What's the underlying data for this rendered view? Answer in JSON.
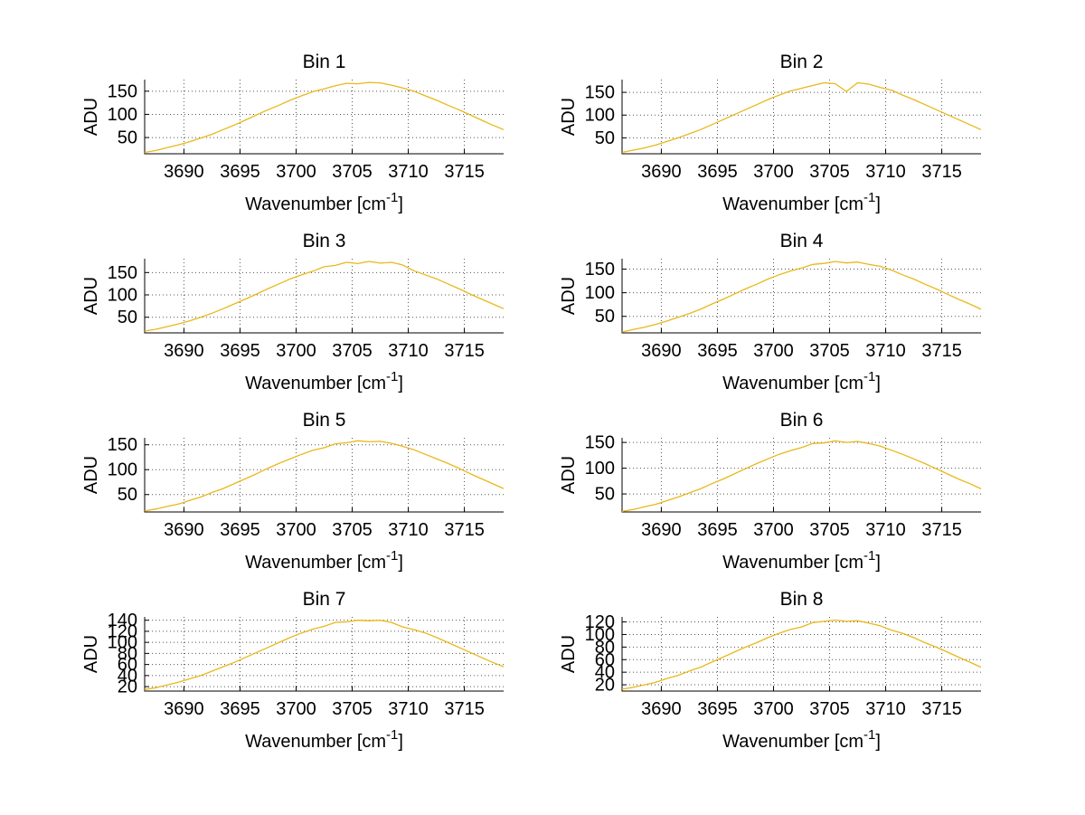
{
  "figure": {
    "background": "#ffffff",
    "line_color": "#e9b81a",
    "grid_color": "#555555",
    "axis_color": "#000000"
  },
  "shared": {
    "xlabel": "Wavenumber [cm⁻¹]",
    "xlabel_prefix": "Wavenumber [cm",
    "xlabel_sup": "-1",
    "xlabel_suffix": "]",
    "ylabel": "ADU",
    "xlim": [
      3686.5,
      3718.5
    ],
    "xticks": [
      3690,
      3695,
      3700,
      3705,
      3710,
      3715
    ],
    "x": [
      3686.5,
      3687.5,
      3688.5,
      3689.5,
      3690.5,
      3691.5,
      3692.5,
      3693.5,
      3694.5,
      3695.5,
      3696.5,
      3697.5,
      3698.5,
      3699.5,
      3700.5,
      3701.5,
      3702.5,
      3703.5,
      3704.5,
      3705.5,
      3706.5,
      3707.5,
      3708.5,
      3709.5,
      3710.5,
      3711.5,
      3712.5,
      3713.5,
      3714.5,
      3715.5,
      3716.5,
      3717.5,
      3718.5
    ]
  },
  "chart_data": [
    {
      "type": "line",
      "title": "Bin 1",
      "xlabel": "Wavenumber [cm⁻¹]",
      "ylabel": "ADU",
      "yticks": [
        50,
        100,
        150
      ],
      "ylim": [
        15,
        175
      ],
      "values": [
        18,
        22,
        28,
        34,
        41,
        49,
        57,
        67,
        77,
        88,
        99,
        110,
        120,
        131,
        140,
        149,
        155,
        162,
        167,
        166,
        169,
        168,
        163,
        157,
        150,
        140,
        131,
        120,
        110,
        99,
        88,
        77,
        67
      ]
    },
    {
      "type": "line",
      "title": "Bin 2",
      "xlabel": "Wavenumber [cm⁻¹]",
      "ylabel": "ADU",
      "yticks": [
        50,
        100,
        150
      ],
      "ylim": [
        15,
        178
      ],
      "values": [
        18,
        23,
        28,
        34,
        42,
        50,
        59,
        68,
        79,
        90,
        101,
        112,
        123,
        134,
        144,
        153,
        159,
        165,
        171,
        169,
        152,
        171,
        168,
        161,
        155,
        144,
        134,
        123,
        112,
        101,
        90,
        79,
        68
      ]
    },
    {
      "type": "line",
      "title": "Bin 3",
      "xlabel": "Wavenumber [cm⁻¹]",
      "ylabel": "ADU",
      "yticks": [
        50,
        100,
        150
      ],
      "ylim": [
        15,
        181
      ],
      "values": [
        19,
        23,
        29,
        35,
        42,
        50,
        59,
        69,
        80,
        91,
        102,
        114,
        125,
        136,
        145,
        153,
        163,
        166,
        173,
        170,
        175,
        171,
        173,
        167,
        154,
        145,
        136,
        125,
        114,
        102,
        91,
        80,
        69
      ]
    },
    {
      "type": "line",
      "title": "Bin 4",
      "xlabel": "Wavenumber [cm⁻¹]",
      "ylabel": "ADU",
      "yticks": [
        50,
        100,
        150
      ],
      "ylim": [
        15,
        172
      ],
      "values": [
        17,
        22,
        27,
        33,
        40,
        48,
        56,
        65,
        76,
        86,
        97,
        108,
        118,
        129,
        138,
        146,
        152,
        160,
        162,
        166,
        163,
        165,
        160,
        156,
        148,
        138,
        129,
        118,
        108,
        97,
        86,
        76,
        65
      ]
    },
    {
      "type": "line",
      "title": "Bin 5",
      "xlabel": "Wavenumber [cm⁻¹]",
      "ylabel": "ADU",
      "yticks": [
        50,
        100,
        150
      ],
      "ylim": [
        15,
        164
      ],
      "values": [
        17,
        21,
        26,
        31,
        38,
        45,
        54,
        62,
        72,
        82,
        92,
        103,
        113,
        122,
        131,
        139,
        144,
        152,
        154,
        158,
        156,
        157,
        153,
        147,
        140,
        131,
        122,
        113,
        103,
        92,
        82,
        72,
        62
      ]
    },
    {
      "type": "line",
      "title": "Bin 6",
      "xlabel": "Wavenumber [cm⁻¹]",
      "ylabel": "ADU",
      "yticks": [
        50,
        100,
        150
      ],
      "ylim": [
        15,
        159
      ],
      "values": [
        16,
        20,
        25,
        30,
        37,
        44,
        52,
        60,
        70,
        79,
        89,
        99,
        109,
        118,
        127,
        134,
        140,
        148,
        149,
        153,
        150,
        152,
        148,
        143,
        135,
        127,
        118,
        109,
        99,
        89,
        79,
        70,
        60
      ]
    },
    {
      "type": "line",
      "title": "Bin 7",
      "xlabel": "Wavenumber [cm⁻¹]",
      "ylabel": "ADU",
      "yticks": [
        20,
        40,
        60,
        80,
        100,
        120,
        140
      ],
      "ylim": [
        12,
        146
      ],
      "values": [
        15,
        18,
        23,
        28,
        34,
        40,
        48,
        56,
        64,
        73,
        82,
        91,
        100,
        109,
        117,
        124,
        129,
        136,
        137,
        140,
        139,
        140,
        136,
        128,
        123,
        117,
        109,
        100,
        91,
        82,
        73,
        64,
        56
      ]
    },
    {
      "type": "line",
      "title": "Bin 8",
      "xlabel": "Wavenumber [cm⁻¹]",
      "ylabel": "ADU",
      "yticks": [
        20,
        40,
        60,
        80,
        100,
        120
      ],
      "ylim": [
        10,
        128
      ],
      "values": [
        13,
        16,
        20,
        24,
        30,
        35,
        42,
        48,
        56,
        64,
        72,
        80,
        87,
        95,
        102,
        108,
        112,
        119,
        121,
        123,
        121,
        122,
        118,
        114,
        107,
        102,
        95,
        87,
        80,
        72,
        64,
        56,
        48
      ]
    }
  ]
}
